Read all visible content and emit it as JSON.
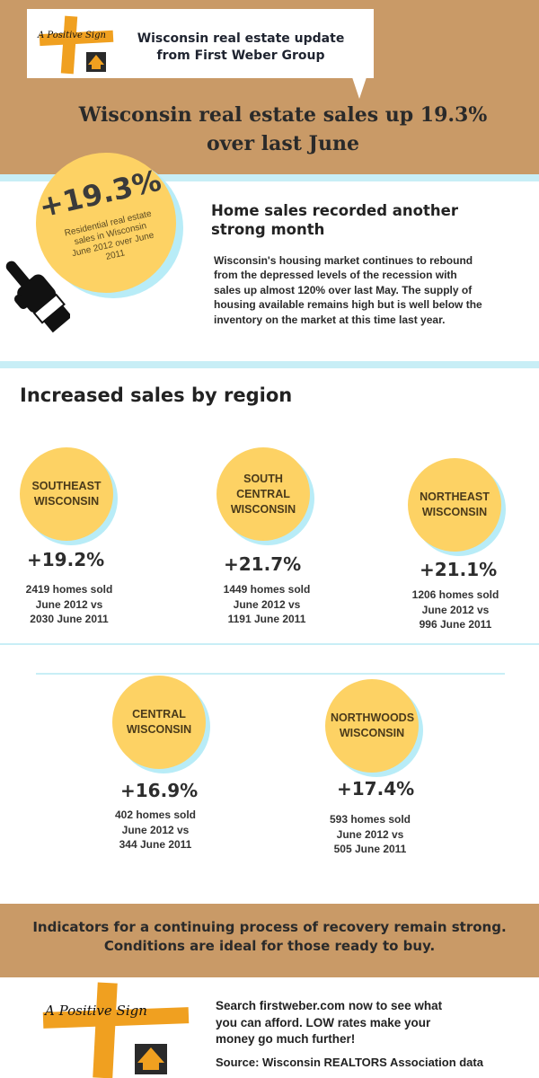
{
  "header": {
    "logo_tagline": "A Positive Sign",
    "bubble_line1": "Wisconsin real estate update",
    "bubble_line2": "from First Weber Group",
    "headline_line1": "Wisconsin real estate sales up 19.3%",
    "headline_line2": "over last June"
  },
  "lead": {
    "big_stat": "+19.3%",
    "caption_line1": "Residential real estate",
    "caption_line2": "sales in Wisconsin",
    "caption_line3": "June 2012 over June 2011",
    "title_line1": "Home sales recorded another",
    "title_line2": "strong month",
    "body": "Wisconsin's housing market continues to rebound from the depressed levels of the recession with sales up almost 120% over last May.  The supply of housing available remains high but is well below the inventory on the market at this time last year."
  },
  "regions": {
    "title": "Increased sales by region",
    "items": [
      {
        "name_line1": "SOUTHEAST",
        "name_line2": "WISCONSIN",
        "name_line3": "",
        "pct": "+19.2%",
        "detail_line1": "2419 homes sold",
        "detail_line2": "June 2012 vs",
        "detail_line3": "2030 June 2011"
      },
      {
        "name_line1": "SOUTH",
        "name_line2": "CENTRAL",
        "name_line3": "WISCONSIN",
        "pct": "+21.7%",
        "detail_line1": "1449 homes sold",
        "detail_line2": "June 2012 vs",
        "detail_line3": "1191 June 2011"
      },
      {
        "name_line1": "NORTHEAST",
        "name_line2": "WISCONSIN",
        "name_line3": "",
        "pct": "+21.1%",
        "detail_line1": "1206 homes sold",
        "detail_line2": "June 2012 vs",
        "detail_line3": "996 June 2011"
      },
      {
        "name_line1": "CENTRAL",
        "name_line2": "WISCONSIN",
        "name_line3": "",
        "pct": "+16.9%",
        "detail_line1": "402 homes sold",
        "detail_line2": "June 2012 vs",
        "detail_line3": "344 June 2011"
      },
      {
        "name_line1": "NORTHWOODS",
        "name_line2": "WISCONSIN",
        "name_line3": "",
        "pct": "+17.4%",
        "detail_line1": "593 homes sold",
        "detail_line2": "June 2012 vs",
        "detail_line3": "505 June 2011"
      }
    ]
  },
  "indicator": {
    "line1": "Indicators for a continuing process of recovery remain strong.",
    "line2": "Conditions are ideal for those ready to buy."
  },
  "footer": {
    "logo_tagline": "A Positive Sign",
    "cta_line1": "Search firstweber.com now to see what",
    "cta_line2": "you can afford. LOW rates make your",
    "cta_line3": "money go much further!",
    "source": "Source: Wisconsin REALTORS Association data"
  },
  "colors": {
    "tan": "#c99a67",
    "yellow": "#fdd264",
    "light_blue": "#b8ecf7",
    "orange_cross": "#f0a020",
    "dark": "#1e1e1e"
  },
  "icons": [
    "positive-sign-logo",
    "pointing-hand-icon",
    "house-emblem-icon"
  ]
}
